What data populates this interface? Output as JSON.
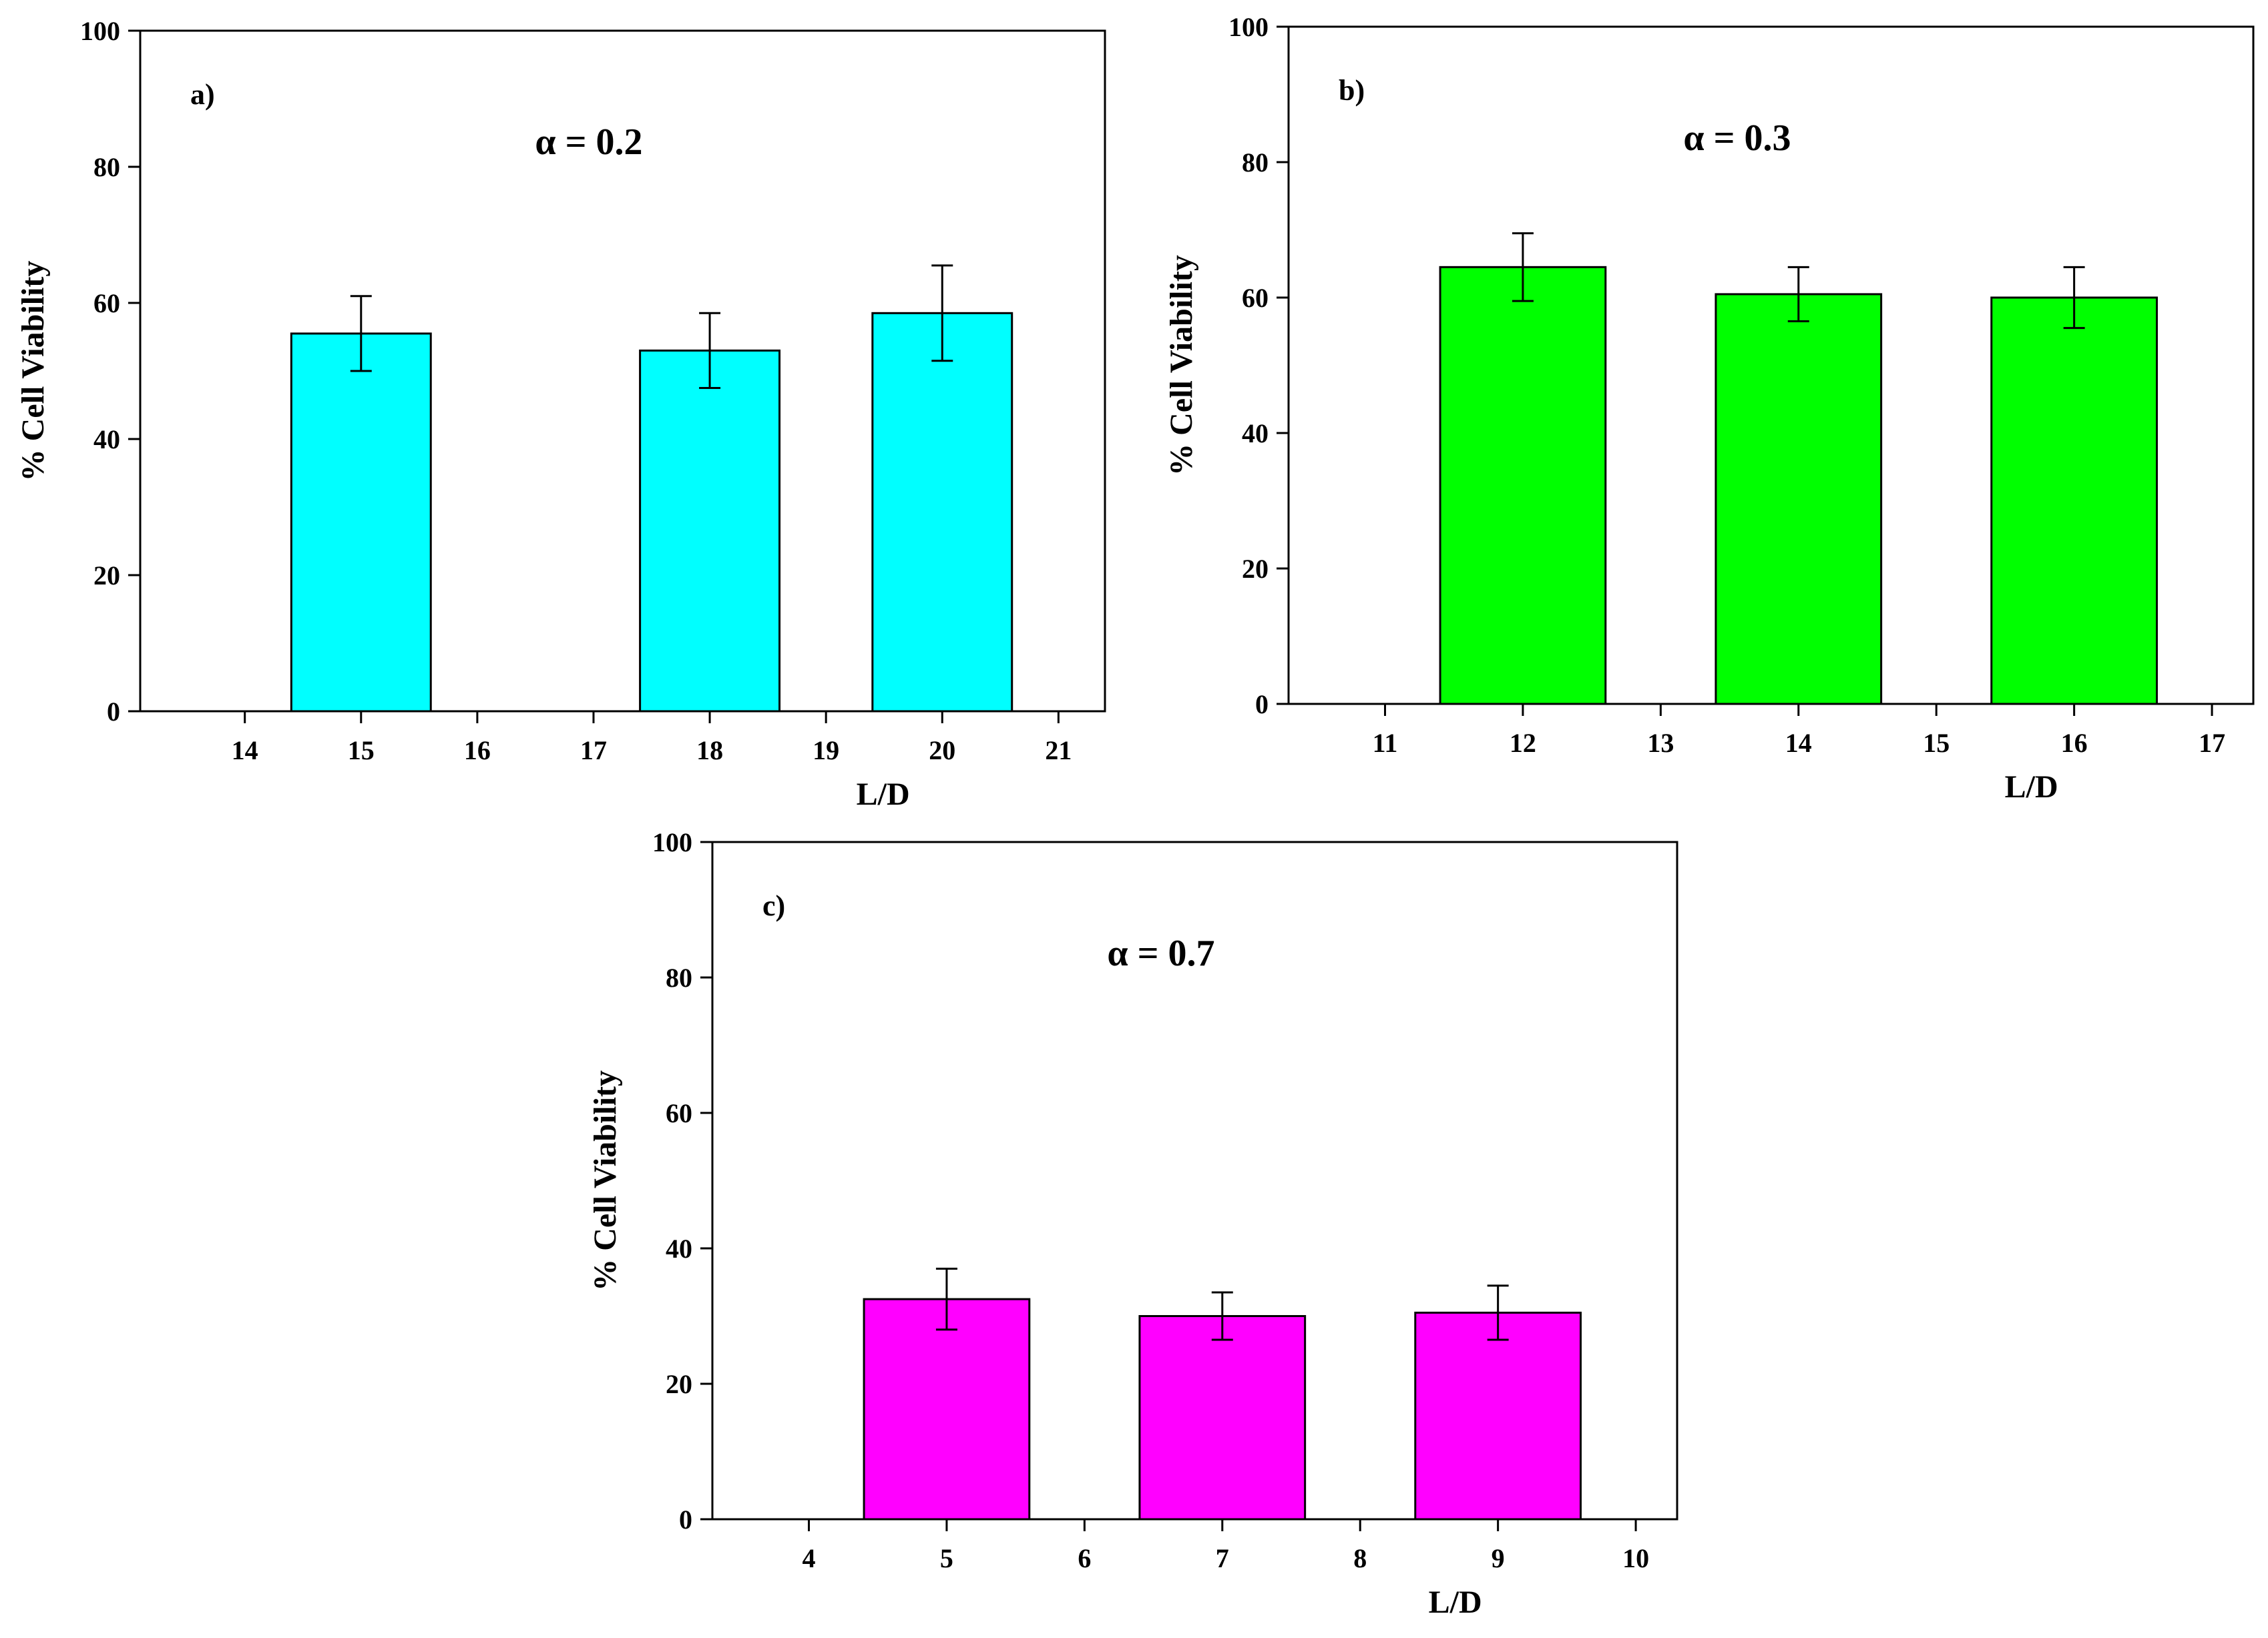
{
  "chart_data": [
    {
      "type": "bar",
      "panel_label": "a)",
      "title": "α = 0.2",
      "xlabel": "L/D",
      "ylabel": "% Cell Viability",
      "xlim": [
        13.1,
        21.4
      ],
      "ylim": [
        0,
        100
      ],
      "x_ticks": [
        14,
        15,
        16,
        17,
        18,
        19,
        20,
        21
      ],
      "y_ticks": [
        0,
        20,
        40,
        60,
        80,
        100
      ],
      "bar_color": "#00FFFF",
      "bars": [
        {
          "x": 15,
          "value": 55.5,
          "error": 5.5
        },
        {
          "x": 18,
          "value": 53.0,
          "error": 5.5
        },
        {
          "x": 20,
          "value": 58.5,
          "error": 7.0
        }
      ]
    },
    {
      "type": "bar",
      "panel_label": "b)",
      "title": "α = 0.3",
      "xlabel": "L/D",
      "ylabel": "% Cell Viability",
      "xlim": [
        10.3,
        17.3
      ],
      "ylim": [
        0,
        100
      ],
      "x_ticks": [
        11,
        12,
        13,
        14,
        15,
        16,
        17
      ],
      "y_ticks": [
        0,
        20,
        40,
        60,
        80,
        100
      ],
      "bar_color": "#00FF00",
      "bars": [
        {
          "x": 12,
          "value": 64.5,
          "error": 5.0
        },
        {
          "x": 14,
          "value": 60.5,
          "error": 4.0
        },
        {
          "x": 16,
          "value": 60.0,
          "error": 4.5
        }
      ]
    },
    {
      "type": "bar",
      "panel_label": "c)",
      "title": "α = 0.7",
      "xlabel": "L/D",
      "ylabel": "% Cell Viability",
      "xlim": [
        3.3,
        10.3
      ],
      "ylim": [
        0,
        100
      ],
      "x_ticks": [
        4,
        5,
        6,
        7,
        8,
        9,
        10
      ],
      "y_ticks": [
        0,
        20,
        40,
        60,
        80,
        100
      ],
      "bar_color": "#FF00FF",
      "bars": [
        {
          "x": 5,
          "value": 32.5,
          "error": 4.5
        },
        {
          "x": 7,
          "value": 30.0,
          "error": 3.5
        },
        {
          "x": 9,
          "value": 30.5,
          "error": 4.0
        }
      ]
    }
  ]
}
